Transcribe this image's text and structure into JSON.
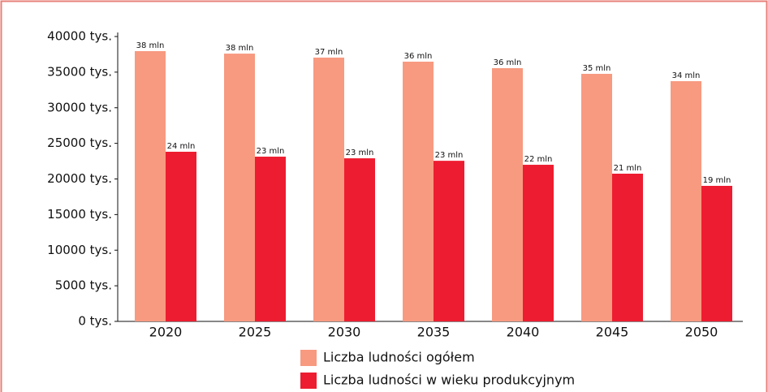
{
  "chart_data": {
    "type": "bar",
    "categories": [
      "2020",
      "2025",
      "2030",
      "2035",
      "2040",
      "2045",
      "2050"
    ],
    "series": [
      {
        "name": "Liczba ludności ogółem",
        "color": "#f79a80",
        "values": [
          37950,
          37600,
          37040,
          36470,
          35560,
          34760,
          33730
        ],
        "value_labels": [
          "38 mln",
          "38 mln",
          "37 mln",
          "36 mln",
          "36 mln",
          "35 mln",
          "34 mln"
        ]
      },
      {
        "name": "Liczba ludności w wieku produkcyjnym",
        "color": "#ee1c30",
        "values": [
          23820,
          23130,
          22900,
          22550,
          21990,
          20740,
          19030
        ],
        "value_labels": [
          "24 mln",
          "23 mln",
          "23 mln",
          "23 mln",
          "22 mln",
          "21 mln",
          "19 mln"
        ]
      }
    ],
    "ylim": [
      0,
      40000
    ],
    "yticks": [
      {
        "value": 0,
        "label": "0 tys."
      },
      {
        "value": 5000,
        "label": "5000 tys."
      },
      {
        "value": 10000,
        "label": "10000 tys."
      },
      {
        "value": 15000,
        "label": "15000 tys."
      },
      {
        "value": 20000,
        "label": "20000 tys."
      },
      {
        "value": 25000,
        "label": "25000 tys."
      },
      {
        "value": 30000,
        "label": "30000 tys."
      },
      {
        "value": 35000,
        "label": "35000 tys."
      },
      {
        "value": 40000,
        "label": "40000 tys."
      }
    ],
    "grid": false,
    "legend": "bottom"
  }
}
